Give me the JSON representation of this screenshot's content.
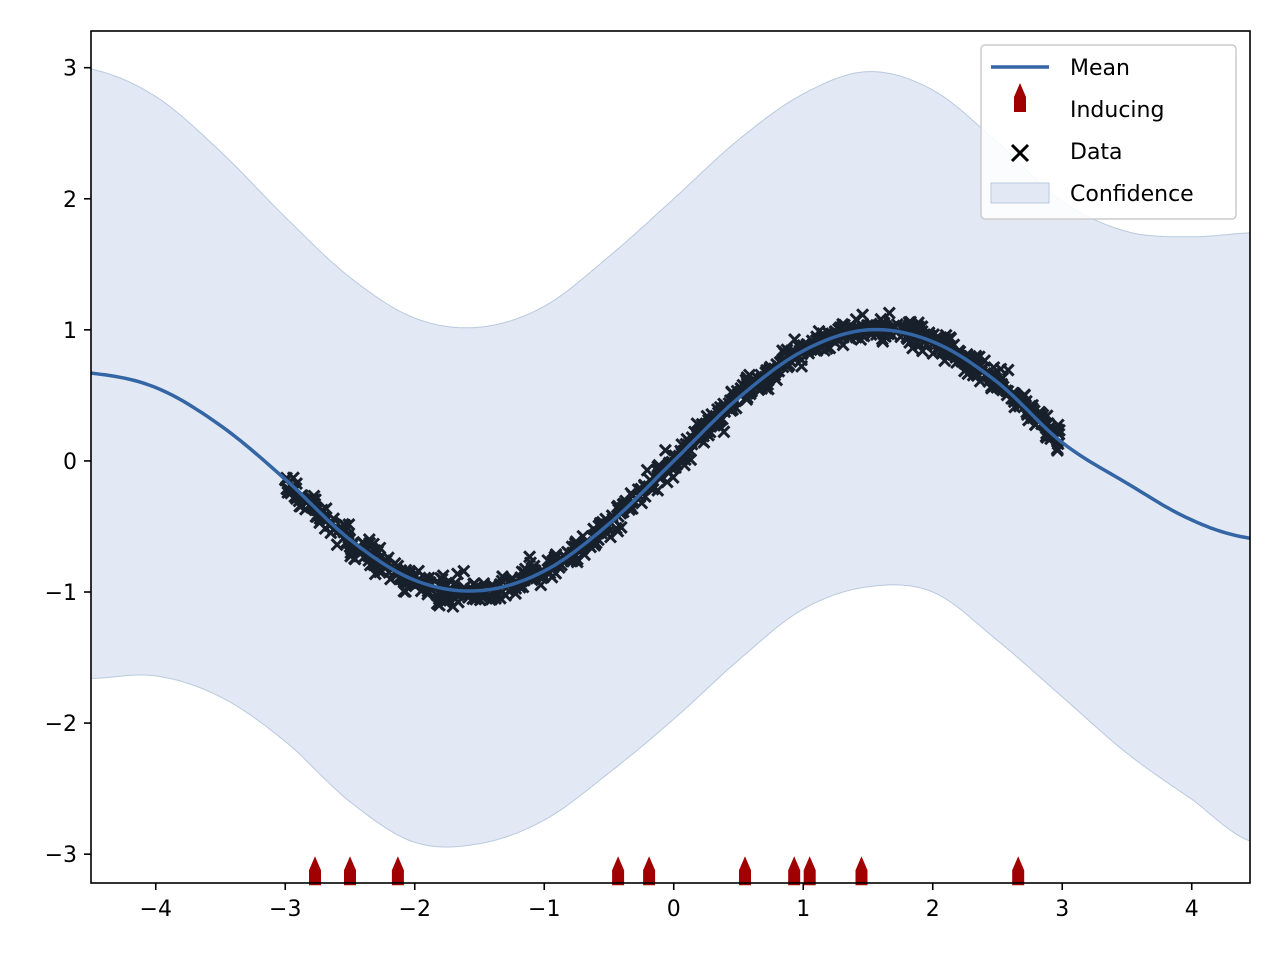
{
  "chart_data": {
    "type": "line",
    "title": "",
    "xlabel": "",
    "ylabel": "",
    "xlim": [
      -4.5,
      4.45
    ],
    "ylim": [
      -3.22,
      3.28
    ],
    "x_ticks": [
      -4,
      -3,
      -2,
      -1,
      0,
      1,
      2,
      3,
      4
    ],
    "x_tick_labels": [
      "−4",
      "−3",
      "−2",
      "−1",
      "0",
      "1",
      "2",
      "3",
      "4"
    ],
    "y_ticks": [
      3,
      2,
      1,
      0,
      -1,
      -2,
      -3
    ],
    "y_tick_labels": [
      "3",
      "2",
      "1",
      "0",
      "−1",
      "−2",
      "−3"
    ],
    "grid": false,
    "legend_position": "top-right",
    "series": [
      {
        "name": "Mean",
        "kind": "line",
        "color": "#3465a4",
        "x": [
          -4.5,
          -4.0,
          -3.5,
          -3.0,
          -2.5,
          -2.0,
          -1.5,
          -1.0,
          -0.5,
          0.0,
          0.5,
          1.0,
          1.5,
          2.0,
          2.5,
          3.0,
          3.5,
          4.0,
          4.45
        ],
        "values": [
          0.67,
          0.56,
          0.27,
          -0.14,
          -0.6,
          -0.91,
          -0.99,
          -0.84,
          -0.48,
          0.0,
          0.48,
          0.84,
          1.0,
          0.91,
          0.6,
          0.14,
          -0.17,
          -0.45,
          -0.59
        ]
      },
      {
        "name": "Inducing",
        "kind": "marker",
        "marker": "arrow-up",
        "color": "#a00000",
        "x": [
          -2.77,
          -2.5,
          -2.13,
          -0.43,
          -0.19,
          0.55,
          0.93,
          1.05,
          1.45,
          2.66
        ],
        "values": [
          -3.1,
          -3.1,
          -3.1,
          -3.1,
          -3.1,
          -3.1,
          -3.1,
          -3.1,
          -3.1,
          -3.1
        ]
      },
      {
        "name": "Data",
        "kind": "scatter",
        "marker": "x",
        "color": "#17202b",
        "x_range": [
          -3.0,
          3.0
        ],
        "function": "sin",
        "noise": 0.05
      },
      {
        "name": "Confidence",
        "kind": "band",
        "color": "#e2e9f4",
        "edge_color": "#b9c9de",
        "x": [
          -4.5,
          -4.0,
          -3.5,
          -3.0,
          -2.5,
          -2.0,
          -1.5,
          -1.0,
          -0.5,
          0.0,
          0.5,
          1.0,
          1.5,
          2.0,
          2.5,
          3.0,
          3.5,
          4.0,
          4.45
        ],
        "upper": [
          2.99,
          2.78,
          2.36,
          1.86,
          1.4,
          1.09,
          1.02,
          1.18,
          1.56,
          2.0,
          2.45,
          2.8,
          2.97,
          2.83,
          2.43,
          1.98,
          1.75,
          1.71,
          1.74
        ],
        "lower": [
          -1.66,
          -1.64,
          -1.8,
          -2.14,
          -2.6,
          -2.91,
          -2.92,
          -2.74,
          -2.38,
          -1.97,
          -1.52,
          -1.13,
          -0.96,
          -1.0,
          -1.37,
          -1.8,
          -2.23,
          -2.58,
          -2.9
        ]
      }
    ],
    "legend": [
      {
        "label": "Mean"
      },
      {
        "label": "Inducing"
      },
      {
        "label": "Data"
      },
      {
        "label": "Confidence"
      }
    ]
  }
}
